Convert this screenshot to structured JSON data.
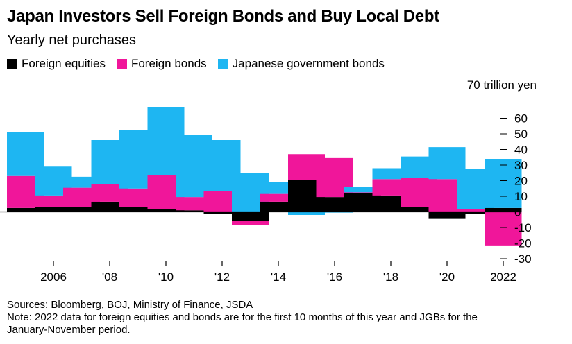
{
  "title": "Japan Investors Sell Foreign Bonds and Buy Local Debt",
  "subtitle": "Yearly net purchases",
  "unit_label": "70 trillion yen",
  "colors": {
    "equities": "#000000",
    "bonds": "#f0169a",
    "jgb": "#1eb6f2",
    "axis": "#000000"
  },
  "chart_data": {
    "type": "bar",
    "stacked": true,
    "title": "Japan Investors Sell Foreign Bonds and Buy Local Debt",
    "subtitle": "Yearly net purchases",
    "ylabel": "trillion yen",
    "ylim": [
      -30,
      70
    ],
    "yticks": [
      70,
      60,
      50,
      40,
      30,
      20,
      10,
      0,
      -10,
      -20,
      -30
    ],
    "ytick_labels": [
      "70 trillion yen",
      "60",
      "50",
      "40",
      "30",
      "20",
      "10",
      "0",
      "-10",
      "-20",
      "-30"
    ],
    "categories": [
      "2005",
      "2006",
      "2007",
      "2008",
      "2009",
      "2010",
      "2011",
      "2012",
      "2013",
      "2014",
      "2015",
      "2016",
      "2017",
      "2018",
      "2019",
      "2020",
      "2021",
      "2022"
    ],
    "xtick_labels": [
      {
        "category": "2006",
        "label": "2006"
      },
      {
        "category": "2008",
        "label": "'08"
      },
      {
        "category": "2010",
        "label": "'10"
      },
      {
        "category": "2012",
        "label": "'12"
      },
      {
        "category": "2014",
        "label": "'14"
      },
      {
        "category": "2016",
        "label": "'16"
      },
      {
        "category": "2018",
        "label": "'18"
      },
      {
        "category": "2020",
        "label": "'20"
      },
      {
        "category": "2022",
        "label": "2022"
      }
    ],
    "series": [
      {
        "name": "Foreign equities",
        "key": "equities",
        "values": [
          2.5,
          3,
          3,
          6.5,
          3,
          2,
          1,
          -1.5,
          -6,
          6.5,
          20.5,
          9.5,
          12,
          10.5,
          3,
          -4.5,
          -1.5,
          2.5
        ]
      },
      {
        "name": "Foreign bonds",
        "key": "bonds",
        "values": [
          20.5,
          7.5,
          12.5,
          11.5,
          12,
          21.5,
          8.5,
          13.5,
          -2.5,
          5,
          16.5,
          25,
          0.5,
          10.5,
          19,
          21,
          2,
          -21.5
        ]
      },
      {
        "name": "Japanese government bonds",
        "key": "jgb",
        "values": [
          28,
          18.5,
          7,
          28,
          37.5,
          43.5,
          40,
          32.5,
          25,
          7.5,
          -2,
          -0.5,
          3.5,
          7,
          13.5,
          20.5,
          25.5,
          31.5
        ]
      }
    ],
    "legend_position": "top-left"
  },
  "footer": {
    "sources": "Sources: Bloomberg, BOJ, Ministry of Finance, JSDA",
    "note_line1": "Note: 2022 data for foreign equities and bonds are for the first 10 months of this year and JGBs for the",
    "note_line2": "January-November period."
  }
}
